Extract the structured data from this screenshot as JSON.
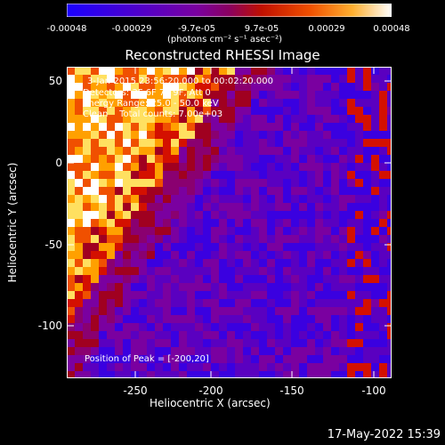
{
  "colorbar": {
    "ticks": [
      "-0.00048",
      "-0.00029",
      "-9.7e-05",
      "9.7e-05",
      "0.00029",
      "0.00048"
    ],
    "units": "(photons cm⁻² s⁻¹ asec⁻²)",
    "colors": [
      "#1a00ff",
      "#3a00e0",
      "#5a00c0",
      "#7a00a0",
      "#8a0070",
      "#a00020",
      "#d41000",
      "#f05000",
      "#ffa000",
      "#ffe060",
      "#ffffff"
    ]
  },
  "title": "Reconstructed RHESSI Image",
  "annotations": {
    "line1": "3-Jan-2015 23:56:20.000 to 00:02:20.000",
    "line2": "Detectors: 3F 6F 7F 9F, Att 0",
    "line3": "Energy Range: 25.0 - 50.0 keV",
    "line4": "Clean    Total counts: 7.00e+03",
    "peak": "Position of Peak = [-200,20]"
  },
  "axes": {
    "xlabel": "Heliocentric X (arcsec)",
    "ylabel": "Heliocentric Y (arcsec)",
    "xticks": [
      "-250",
      "-200",
      "-150",
      "-100"
    ],
    "yticks": [
      "50",
      "0",
      "-50",
      "-100"
    ]
  },
  "timestamp": "17-May-2022 15:39"
}
